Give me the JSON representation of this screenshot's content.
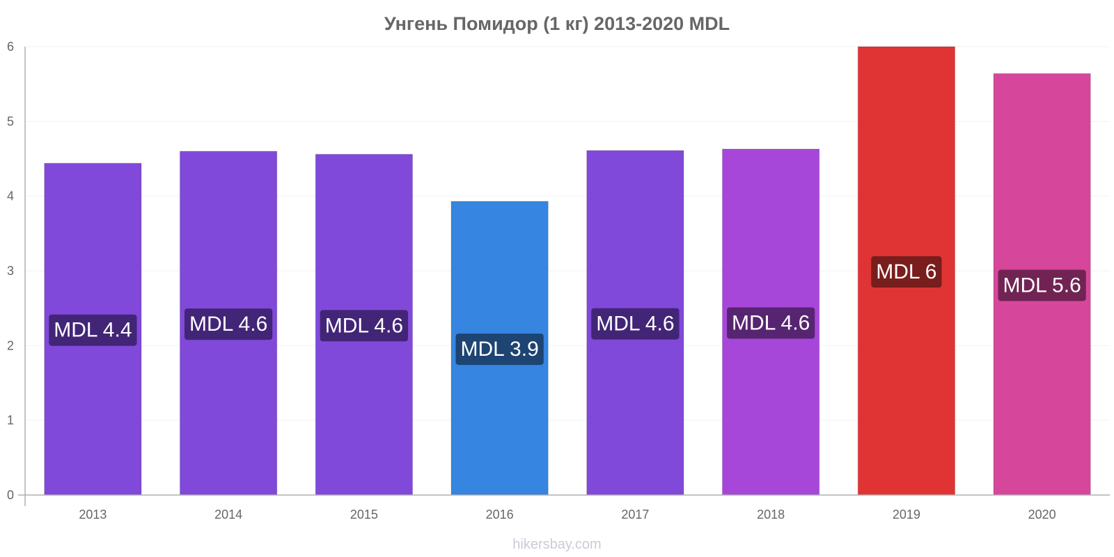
{
  "chart_data": {
    "type": "bar",
    "title": "Унгень Помидор (1 кг) 2013-2020 MDL",
    "xlabel": "",
    "ylabel": "",
    "ylim": [
      0,
      6
    ],
    "yticks": [
      0,
      1,
      2,
      3,
      4,
      5,
      6
    ],
    "grid": true,
    "categories": [
      "2013",
      "2014",
      "2015",
      "2016",
      "2017",
      "2018",
      "2019",
      "2020"
    ],
    "values": [
      4.44,
      4.6,
      4.56,
      3.93,
      4.61,
      4.63,
      6.0,
      5.64
    ],
    "labels": [
      "MDL 4.4",
      "MDL 4.6",
      "MDL 4.6",
      "MDL 3.9",
      "MDL 4.6",
      "MDL 4.6",
      "MDL 6",
      "MDL 5.6"
    ],
    "bar_colors": [
      "#8049d9",
      "#8049d9",
      "#8049d9",
      "#3685e0",
      "#8049d9",
      "#a647d9",
      "#e03434",
      "#d6479c"
    ],
    "label_bg_colors": [
      "#3e2472",
      "#3e2472",
      "#3e2472",
      "#1c406b",
      "#3e2472",
      "#52236b",
      "#731c1c",
      "#6b2350"
    ]
  },
  "watermark": "hikersbay.com"
}
